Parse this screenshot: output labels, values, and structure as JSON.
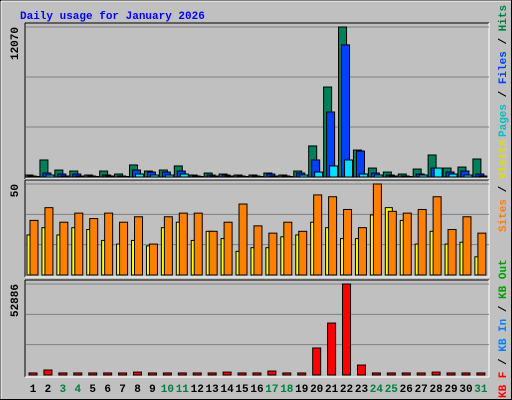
{
  "chart_data": {
    "type": "bar",
    "title": "Daily usage for January 2026",
    "legend_separator": " / ",
    "categories": [
      "1",
      "2",
      "3",
      "4",
      "5",
      "6",
      "7",
      "8",
      "9",
      "10",
      "11",
      "12",
      "13",
      "14",
      "15",
      "16",
      "17",
      "18",
      "19",
      "20",
      "21",
      "22",
      "23",
      "24",
      "25",
      "26",
      "27",
      "28",
      "29",
      "30",
      "31"
    ],
    "category_colors": [
      "#000000",
      "#000000",
      "#008040",
      "#008040",
      "#000000",
      "#000000",
      "#000000",
      "#000000",
      "#000000",
      "#008040",
      "#008040",
      "#000000",
      "#000000",
      "#000000",
      "#000000",
      "#000000",
      "#008040",
      "#008040",
      "#000000",
      "#000000",
      "#000000",
      "#000000",
      "#000000",
      "#008040",
      "#008040",
      "#000000",
      "#000000",
      "#000000",
      "#000000",
      "#000000",
      "#008040"
    ],
    "panels": [
      {
        "ylim": [
          0,
          12070
        ],
        "yticks": [
          12070
        ],
        "grid_divisions": 3,
        "legend": [
          {
            "text": "Pages",
            "color": "#00c0c0"
          },
          {
            "text": "Files",
            "color": "#0040ff"
          },
          {
            "text": "Hits",
            "color": "#008040"
          }
        ],
        "series": [
          {
            "color": "#00805a",
            "values": [
              160,
              1370,
              560,
              480,
              160,
              480,
              240,
              970,
              480,
              560,
              890,
              160,
              320,
              240,
              160,
              160,
              320,
              160,
              480,
              2500,
              7240,
              12070,
              2170,
              720,
              400,
              240,
              640,
              1770,
              720,
              800,
              1450
            ]
          },
          {
            "color": "#0040ff",
            "values": [
              80,
              320,
              240,
              240,
              80,
              160,
              80,
              560,
              400,
              400,
              480,
              80,
              160,
              160,
              80,
              80,
              240,
              80,
              320,
              1370,
              5230,
              10630,
              2090,
              320,
              160,
              80,
              240,
              720,
              400,
              480,
              240
            ]
          },
          {
            "color": "#00e0ff",
            "values": [
              40,
              160,
              80,
              80,
              40,
              80,
              40,
              240,
              160,
              160,
              240,
              40,
              80,
              80,
              40,
              40,
              80,
              40,
              160,
              400,
              890,
              1370,
              240,
              160,
              80,
              40,
              160,
              720,
              240,
              160,
              80
            ]
          }
        ]
      },
      {
        "ylim": [
          0,
          50
        ],
        "yticks": [
          50
        ],
        "grid_divisions": 3,
        "legend": [
          {
            "text": "Sites",
            "color": "#ff8000"
          },
          {
            "text": "Visits",
            "color": "#e0e000"
          }
        ],
        "series": [
          {
            "color": "#ffff00",
            "values": [
              22,
              26,
              22,
              26,
              25,
              19,
              17,
              19,
              16,
              26,
              29,
              19,
              24,
              20,
              13,
              15,
              15,
              21,
              22,
              29,
              26,
              20,
              20,
              33,
              37,
              30,
              17,
              24,
              17,
              18,
              10
            ]
          },
          {
            "color": "#ff8000",
            "values": [
              30,
              37,
              29,
              34,
              31,
              34,
              29,
              32,
              17,
              32,
              34,
              34,
              24,
              29,
              39,
              27,
              23,
              29,
              24,
              44,
              43,
              36,
              26,
              50,
              35,
              34,
              36,
              43,
              25,
              32,
              23
            ]
          }
        ]
      },
      {
        "ylim": [
          0,
          52886
        ],
        "yticks": [
          52886
        ],
        "grid_divisions": 3,
        "legend": [
          {
            "text": "KB F",
            "color": "#ff0000"
          },
          {
            "text": "KB In",
            "color": "#0080ff"
          },
          {
            "text": "KB Out",
            "color": "#00a000"
          }
        ],
        "series": [
          {
            "color": "#ff0000",
            "values": [
              1200,
              2900,
              1200,
              1200,
              1200,
              1200,
              1200,
              1700,
              1200,
              1200,
              1200,
              1200,
              1200,
              1700,
              1200,
              1200,
              2300,
              1200,
              1200,
              15700,
              30200,
              52886,
              5800,
              1200,
              1200,
              1200,
              1200,
              1700,
              1200,
              1200,
              1200
            ]
          }
        ]
      }
    ]
  }
}
